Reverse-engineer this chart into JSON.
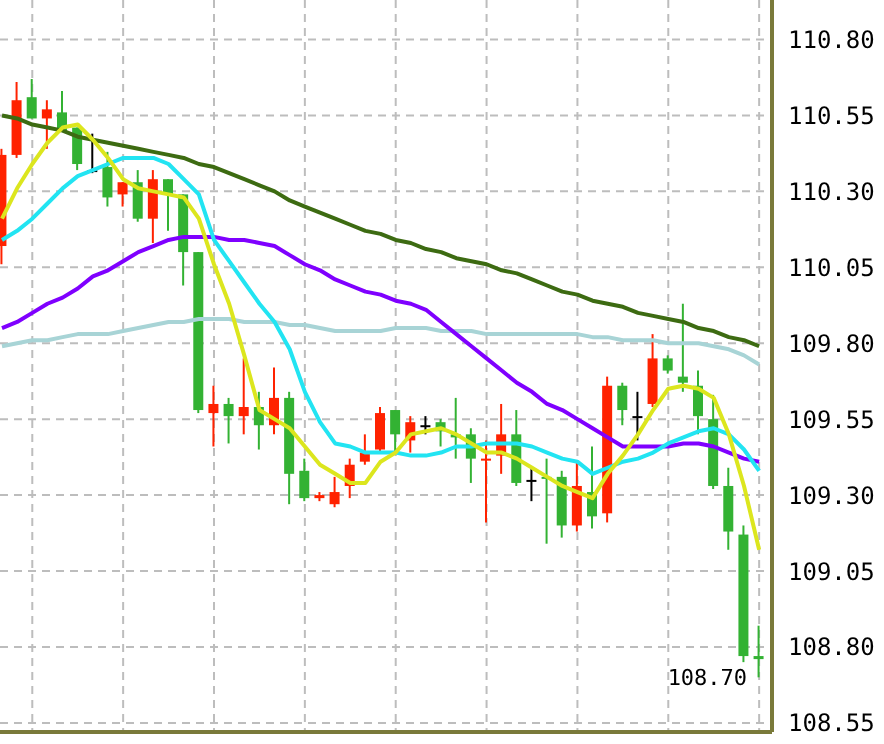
{
  "chart_data": {
    "type": "candlestick",
    "categories": [
      null,
      null,
      null,
      null,
      null,
      null,
      null,
      null,
      null,
      null,
      null,
      null,
      null,
      null,
      null,
      null,
      null,
      null,
      null,
      null,
      null,
      null,
      null,
      null,
      null,
      null,
      null,
      null,
      null,
      null,
      null,
      null,
      null,
      null,
      null,
      null,
      null,
      null,
      null,
      null,
      null,
      null,
      null,
      null,
      null,
      null,
      null,
      null,
      null,
      null,
      null
    ],
    "ohlc": [
      [
        110.12,
        110.44,
        110.06,
        110.42
      ],
      [
        110.42,
        110.66,
        110.41,
        110.6
      ],
      [
        110.61,
        110.67,
        110.54,
        110.54
      ],
      [
        110.54,
        110.6,
        110.44,
        110.57
      ],
      [
        110.56,
        110.63,
        110.5,
        110.5
      ],
      [
        110.51,
        110.51,
        110.37,
        110.39
      ],
      [
        110.37,
        110.49,
        110.36,
        110.37
      ],
      [
        110.38,
        110.43,
        110.25,
        110.28
      ],
      [
        110.29,
        110.33,
        110.25,
        110.33
      ],
      [
        110.33,
        110.37,
        110.2,
        110.21
      ],
      [
        110.21,
        110.37,
        110.13,
        110.34
      ],
      [
        110.34,
        110.34,
        110.17,
        110.29
      ],
      [
        110.29,
        110.29,
        109.99,
        110.1
      ],
      [
        110.1,
        110.1,
        109.57,
        109.58
      ],
      [
        109.57,
        109.66,
        109.46,
        109.6
      ],
      [
        109.6,
        109.62,
        109.47,
        109.56
      ],
      [
        109.56,
        109.75,
        109.5,
        109.59
      ],
      [
        109.59,
        109.64,
        109.45,
        109.53
      ],
      [
        109.53,
        109.72,
        109.5,
        109.62
      ],
      [
        109.62,
        109.64,
        109.27,
        109.37
      ],
      [
        109.38,
        109.42,
        109.28,
        109.29
      ],
      [
        109.29,
        109.31,
        109.28,
        109.3
      ],
      [
        109.27,
        109.36,
        109.26,
        109.31
      ],
      [
        109.33,
        109.42,
        109.29,
        109.4
      ],
      [
        109.41,
        109.5,
        109.4,
        109.44
      ],
      [
        109.45,
        109.59,
        109.44,
        109.57
      ],
      [
        109.58,
        109.58,
        109.44,
        109.5
      ],
      [
        109.48,
        109.56,
        109.44,
        109.54
      ],
      [
        109.53,
        109.56,
        109.5,
        109.53
      ],
      [
        109.54,
        109.55,
        109.46,
        109.51
      ],
      [
        109.5,
        109.62,
        109.42,
        109.49
      ],
      [
        109.5,
        109.52,
        109.34,
        109.42
      ],
      [
        109.42,
        109.48,
        109.21,
        109.42
      ],
      [
        109.43,
        109.6,
        109.37,
        109.5
      ],
      [
        109.5,
        109.58,
        109.33,
        109.34
      ],
      [
        109.35,
        109.39,
        109.28,
        109.35
      ],
      [
        109.36,
        109.42,
        109.14,
        109.36
      ],
      [
        109.36,
        109.38,
        109.16,
        109.2
      ],
      [
        109.2,
        109.41,
        109.18,
        109.33
      ],
      [
        109.31,
        109.46,
        109.19,
        109.23
      ],
      [
        109.24,
        109.69,
        109.21,
        109.66
      ],
      [
        109.66,
        109.67,
        109.53,
        109.58
      ],
      [
        109.56,
        109.64,
        109.48,
        109.56
      ],
      [
        109.6,
        109.83,
        109.59,
        109.75
      ],
      [
        109.75,
        109.76,
        109.7,
        109.71
      ],
      [
        109.69,
        109.93,
        109.64,
        109.67
      ],
      [
        109.66,
        109.71,
        109.5,
        109.56
      ],
      [
        109.55,
        109.63,
        109.32,
        109.33
      ],
      [
        109.33,
        109.39,
        109.12,
        109.18
      ],
      [
        109.17,
        109.2,
        108.75,
        108.77
      ],
      [
        108.77,
        108.87,
        108.7,
        108.76
      ]
    ],
    "colors": [
      "#ff2200",
      "#ff2200",
      "#33b233",
      "#ff2200",
      "#33b233",
      "#33b233",
      "#000000",
      "#33b233",
      "#ff2200",
      "#33b233",
      "#ff2200",
      "#33b233",
      "#33b233",
      "#33b233",
      "#ff2200",
      "#33b233",
      "#ff2200",
      "#33b233",
      "#ff2200",
      "#33b233",
      "#33b233",
      "#ff2200",
      "#ff2200",
      "#ff2200",
      "#ff2200",
      "#ff2200",
      "#33b233",
      "#ff2200",
      "#000000",
      "#33b233",
      "#33b233",
      "#33b233",
      "#ff2200",
      "#ff2200",
      "#33b233",
      "#000000",
      "#33b233",
      "#33b233",
      "#ff2200",
      "#33b233",
      "#ff2200",
      "#33b233",
      "#000000",
      "#ff2200",
      "#33b233",
      "#33b233",
      "#33b233",
      "#33b233",
      "#33b233",
      "#33b233",
      "#33b233"
    ],
    "series": [
      {
        "type": "line",
        "color": "#3d6b12",
        "values": [
          110.55,
          110.54,
          110.52,
          110.51,
          110.5,
          110.48,
          110.47,
          110.46,
          110.45,
          110.44,
          110.43,
          110.42,
          110.41,
          110.39,
          110.38,
          110.36,
          110.34,
          110.32,
          110.3,
          110.27,
          110.25,
          110.23,
          110.21,
          110.19,
          110.17,
          110.16,
          110.14,
          110.13,
          110.11,
          110.1,
          110.08,
          110.07,
          110.06,
          110.04,
          110.03,
          110.01,
          109.99,
          109.97,
          109.96,
          109.94,
          109.93,
          109.92,
          109.9,
          109.89,
          109.88,
          109.87,
          109.85,
          109.84,
          109.82,
          109.81,
          109.79
        ]
      },
      {
        "type": "line",
        "color": "#a8d4d6",
        "values": [
          109.79,
          109.8,
          109.81,
          109.81,
          109.82,
          109.83,
          109.83,
          109.83,
          109.84,
          109.85,
          109.86,
          109.87,
          109.87,
          109.88,
          109.88,
          109.88,
          109.87,
          109.87,
          109.87,
          109.86,
          109.86,
          109.85,
          109.84,
          109.84,
          109.84,
          109.84,
          109.85,
          109.85,
          109.85,
          109.84,
          109.84,
          109.84,
          109.83,
          109.83,
          109.83,
          109.83,
          109.83,
          109.83,
          109.83,
          109.82,
          109.82,
          109.81,
          109.81,
          109.81,
          109.8,
          109.8,
          109.8,
          109.79,
          109.78,
          109.76,
          109.73
        ]
      },
      {
        "type": "line",
        "color": "#7f00ff",
        "values": [
          109.85,
          109.87,
          109.9,
          109.93,
          109.95,
          109.98,
          110.02,
          110.04,
          110.07,
          110.1,
          110.12,
          110.14,
          110.15,
          110.15,
          110.15,
          110.14,
          110.14,
          110.13,
          110.12,
          110.09,
          110.06,
          110.04,
          110.01,
          109.99,
          109.97,
          109.96,
          109.94,
          109.93,
          109.91,
          109.87,
          109.83,
          109.79,
          109.75,
          109.71,
          109.67,
          109.64,
          109.6,
          109.58,
          109.55,
          109.52,
          109.49,
          109.46,
          109.46,
          109.46,
          109.46,
          109.47,
          109.47,
          109.46,
          109.44,
          109.42,
          109.41
        ]
      },
      {
        "type": "line",
        "color": "#22e4f2",
        "values": [
          110.14,
          110.17,
          110.21,
          110.26,
          110.31,
          110.35,
          110.37,
          110.39,
          110.41,
          110.41,
          110.41,
          110.39,
          110.34,
          110.29,
          110.14,
          110.07,
          110.0,
          109.93,
          109.87,
          109.78,
          109.64,
          109.54,
          109.47,
          109.46,
          109.44,
          109.44,
          109.44,
          109.43,
          109.43,
          109.44,
          109.46,
          109.46,
          109.47,
          109.47,
          109.47,
          109.46,
          109.44,
          109.42,
          109.41,
          109.37,
          109.39,
          109.41,
          109.42,
          109.44,
          109.47,
          109.49,
          109.51,
          109.52,
          109.5,
          109.45,
          109.38
        ]
      },
      {
        "type": "line",
        "color": "#dce61e",
        "values": [
          110.21,
          110.31,
          110.39,
          110.46,
          110.51,
          110.52,
          110.47,
          110.41,
          110.34,
          110.31,
          110.3,
          110.29,
          110.28,
          110.21,
          110.06,
          109.93,
          109.76,
          109.58,
          109.55,
          109.52,
          109.46,
          109.4,
          109.37,
          109.34,
          109.34,
          109.41,
          109.44,
          109.5,
          109.51,
          109.52,
          109.5,
          109.47,
          109.44,
          109.44,
          109.42,
          109.39,
          109.36,
          109.33,
          109.31,
          109.29,
          109.37,
          109.43,
          109.5,
          109.58,
          109.65,
          109.66,
          109.65,
          109.62,
          109.5,
          109.33,
          109.12
        ]
      }
    ],
    "ylim": [
      108.52,
      110.93
    ],
    "yticks": [
      {
        "value": 108.55,
        "label": "108.55"
      },
      {
        "value": 108.8,
        "label": "108.80"
      },
      {
        "value": 109.05,
        "label": "109.05"
      },
      {
        "value": 109.3,
        "label": "109.30"
      },
      {
        "value": 109.55,
        "label": "109.55"
      },
      {
        "value": 109.8,
        "label": "109.80"
      },
      {
        "value": 110.05,
        "label": "110.05"
      },
      {
        "value": 110.3,
        "label": "110.30"
      },
      {
        "value": 110.55,
        "label": "110.55"
      },
      {
        "value": 110.8,
        "label": "110.80"
      }
    ],
    "annotations": [
      "108.70"
    ],
    "grid": true,
    "tick_labels": "y"
  }
}
